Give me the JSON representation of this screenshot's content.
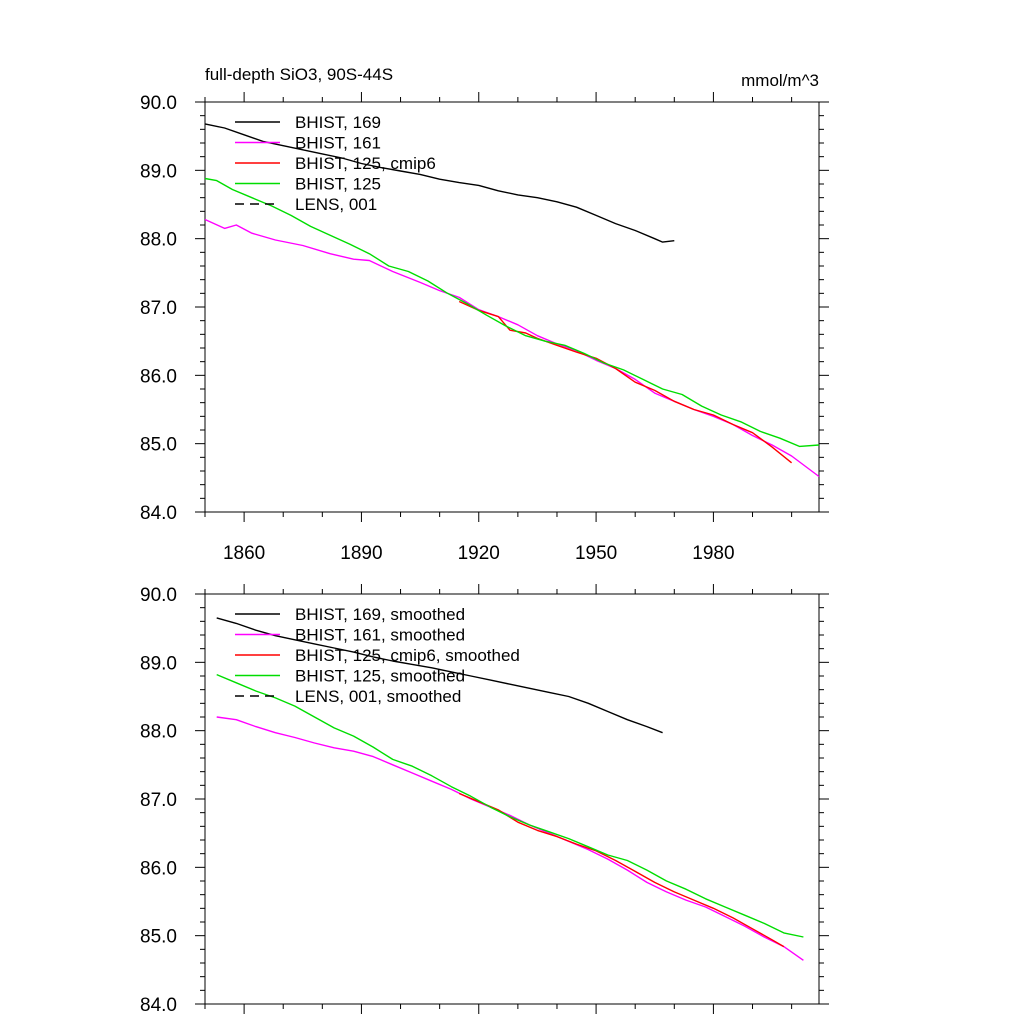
{
  "header": {
    "title": "full-depth SiO3, 90S-44S",
    "units": "mmol/m^3"
  },
  "chart_data": [
    {
      "type": "line",
      "xlim": [
        1850,
        2007
      ],
      "ylim": [
        84.0,
        90.0
      ],
      "x_ticks": [
        1860,
        1890,
        1920,
        1950,
        1980
      ],
      "x_tick_labels": [
        "1860",
        "1890",
        "1920",
        "1950",
        "1980"
      ],
      "y_ticks": [
        84.0,
        85.0,
        86.0,
        87.0,
        88.0,
        89.0,
        90.0
      ],
      "y_tick_labels": [
        "84.0",
        "85.0",
        "86.0",
        "87.0",
        "88.0",
        "89.0",
        "90.0"
      ],
      "legend": {
        "placement": "top-left",
        "entries": [
          "BHIST, 169",
          "BHIST, 161",
          "BHIST, 125, cmip6",
          "BHIST, 125",
          "LENS, 001"
        ]
      },
      "series": [
        {
          "name": "BHIST, 169",
          "color": "#000000",
          "dash": "solid",
          "x": [
            1850,
            1855,
            1860,
            1865,
            1870,
            1875,
            1880,
            1885,
            1890,
            1895,
            1900,
            1905,
            1910,
            1915,
            1920,
            1925,
            1930,
            1935,
            1940,
            1945,
            1950,
            1955,
            1960,
            1965,
            1967,
            1970
          ],
          "y": [
            89.68,
            89.62,
            89.52,
            89.42,
            89.36,
            89.3,
            89.24,
            89.18,
            89.1,
            89.04,
            88.99,
            88.94,
            88.87,
            88.82,
            88.78,
            88.7,
            88.64,
            88.6,
            88.54,
            88.46,
            88.34,
            88.22,
            88.12,
            88.0,
            87.95,
            87.97
          ]
        },
        {
          "name": "BHIST, 161",
          "color": "#ff00ff",
          "dash": "solid",
          "x": [
            1850,
            1855,
            1858,
            1862,
            1868,
            1875,
            1882,
            1888,
            1892,
            1898,
            1905,
            1910,
            1915,
            1920,
            1925,
            1930,
            1935,
            1940,
            1945,
            1950,
            1955,
            1960,
            1965,
            1970,
            1975,
            1980,
            1985,
            1990,
            1995,
            2000,
            2007
          ],
          "y": [
            88.28,
            88.15,
            88.2,
            88.08,
            87.98,
            87.9,
            87.78,
            87.7,
            87.68,
            87.52,
            87.36,
            87.24,
            87.14,
            86.96,
            86.86,
            86.74,
            86.58,
            86.46,
            86.36,
            86.22,
            86.1,
            85.94,
            85.74,
            85.62,
            85.5,
            85.4,
            85.28,
            85.12,
            84.98,
            84.82,
            84.52
          ]
        },
        {
          "name": "BHIST, 125, cmip6",
          "color": "#ff0000",
          "dash": "solid",
          "x": [
            1915,
            1920,
            1925,
            1928,
            1932,
            1935,
            1940,
            1945,
            1950,
            1955,
            1960,
            1965,
            1970,
            1975,
            1980,
            1985,
            1990,
            1995,
            2000
          ],
          "y": [
            87.08,
            86.95,
            86.86,
            86.66,
            86.62,
            86.54,
            86.44,
            86.34,
            86.25,
            86.1,
            85.9,
            85.78,
            85.62,
            85.5,
            85.42,
            85.28,
            85.16,
            84.95,
            84.72
          ]
        },
        {
          "name": "BHIST, 125",
          "color": "#00dd00",
          "dash": "solid",
          "x": [
            1850,
            1853,
            1857,
            1862,
            1867,
            1872,
            1877,
            1882,
            1887,
            1892,
            1897,
            1902,
            1907,
            1912,
            1917,
            1922,
            1927,
            1932,
            1937,
            1942,
            1947,
            1952,
            1957,
            1962,
            1967,
            1972,
            1977,
            1982,
            1987,
            1992,
            1997,
            2002,
            2007
          ],
          "y": [
            88.88,
            88.85,
            88.72,
            88.6,
            88.48,
            88.34,
            88.18,
            88.05,
            87.92,
            87.78,
            87.6,
            87.52,
            87.38,
            87.2,
            87.05,
            86.88,
            86.72,
            86.58,
            86.5,
            86.44,
            86.32,
            86.18,
            86.08,
            85.94,
            85.8,
            85.72,
            85.55,
            85.42,
            85.32,
            85.18,
            85.08,
            84.96,
            84.98
          ]
        }
      ]
    },
    {
      "type": "line",
      "xlim": [
        1850,
        2007
      ],
      "ylim": [
        84.0,
        90.0
      ],
      "x_ticks": [
        1860,
        1890,
        1920,
        1950,
        1980
      ],
      "x_tick_labels": [],
      "y_ticks": [
        84.0,
        85.0,
        86.0,
        87.0,
        88.0,
        89.0,
        90.0
      ],
      "y_tick_labels": [
        "84.0",
        "85.0",
        "86.0",
        "87.0",
        "88.0",
        "89.0",
        "90.0"
      ],
      "legend": {
        "placement": "top-left",
        "entries": [
          "BHIST, 169, smoothed",
          "BHIST, 161, smoothed",
          "BHIST, 125, cmip6, smoothed",
          "BHIST, 125, smoothed",
          "LENS, 001, smoothed"
        ]
      },
      "series": [
        {
          "name": "BHIST, 169, smoothed",
          "color": "#000000",
          "dash": "solid",
          "x": [
            1853,
            1858,
            1863,
            1868,
            1873,
            1878,
            1883,
            1888,
            1893,
            1898,
            1903,
            1908,
            1913,
            1918,
            1923,
            1928,
            1933,
            1938,
            1943,
            1948,
            1953,
            1958,
            1963,
            1967
          ],
          "y": [
            89.65,
            89.57,
            89.47,
            89.39,
            89.33,
            89.27,
            89.21,
            89.15,
            89.08,
            89.02,
            88.97,
            88.92,
            88.86,
            88.8,
            88.74,
            88.68,
            88.62,
            88.56,
            88.5,
            88.4,
            88.28,
            88.16,
            88.06,
            87.97
          ]
        },
        {
          "name": "BHIST, 161, smoothed",
          "color": "#ff00ff",
          "dash": "solid",
          "x": [
            1853,
            1858,
            1863,
            1868,
            1873,
            1878,
            1883,
            1888,
            1893,
            1898,
            1903,
            1908,
            1913,
            1918,
            1923,
            1928,
            1933,
            1938,
            1943,
            1948,
            1953,
            1958,
            1963,
            1968,
            1973,
            1978,
            1983,
            1988,
            1993,
            1998,
            2003
          ],
          "y": [
            88.2,
            88.16,
            88.06,
            87.97,
            87.9,
            87.82,
            87.75,
            87.7,
            87.62,
            87.5,
            87.38,
            87.26,
            87.14,
            87.0,
            86.88,
            86.76,
            86.62,
            86.5,
            86.38,
            86.26,
            86.12,
            85.96,
            85.78,
            85.64,
            85.52,
            85.42,
            85.28,
            85.14,
            84.98,
            84.84,
            84.64
          ]
        },
        {
          "name": "BHIST, 125, cmip6, smoothed",
          "color": "#ff0000",
          "dash": "solid",
          "x": [
            1915,
            1920,
            1925,
            1930,
            1935,
            1940,
            1945,
            1950,
            1955,
            1960,
            1965,
            1970,
            1975,
            1980,
            1985,
            1990,
            1995,
            1998
          ],
          "y": [
            87.08,
            86.96,
            86.84,
            86.66,
            86.54,
            86.45,
            86.34,
            86.24,
            86.1,
            85.94,
            85.78,
            85.64,
            85.52,
            85.4,
            85.26,
            85.1,
            84.94,
            84.84
          ]
        },
        {
          "name": "BHIST, 125, smoothed",
          "color": "#00dd00",
          "dash": "solid",
          "x": [
            1853,
            1858,
            1863,
            1868,
            1873,
            1878,
            1883,
            1888,
            1893,
            1898,
            1903,
            1908,
            1913,
            1918,
            1923,
            1928,
            1933,
            1938,
            1943,
            1948,
            1953,
            1958,
            1963,
            1968,
            1973,
            1978,
            1983,
            1988,
            1993,
            1998,
            2003
          ],
          "y": [
            88.82,
            88.7,
            88.58,
            88.48,
            88.36,
            88.2,
            88.04,
            87.92,
            87.76,
            87.58,
            87.48,
            87.34,
            87.18,
            87.04,
            86.88,
            86.74,
            86.62,
            86.52,
            86.42,
            86.3,
            86.18,
            86.1,
            85.96,
            85.8,
            85.68,
            85.54,
            85.42,
            85.3,
            85.18,
            85.04,
            84.98
          ]
        }
      ]
    }
  ]
}
